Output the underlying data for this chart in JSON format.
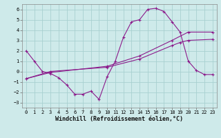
{
  "xlabel": "Windchill (Refroidissement éolien,°C)",
  "background_color": "#ceeaea",
  "grid_color": "#a8d0d0",
  "line_color": "#8b1a8b",
  "curve1_x": [
    0,
    1,
    2,
    3,
    4,
    5,
    6,
    7,
    8,
    9,
    10,
    11,
    12,
    13,
    14,
    15,
    16,
    17,
    18,
    19,
    20,
    21,
    22,
    23
  ],
  "curve1_y": [
    2.0,
    1.0,
    0.0,
    -0.2,
    -0.6,
    -1.3,
    -2.2,
    -2.2,
    -1.9,
    -2.7,
    -0.5,
    1.0,
    3.3,
    4.8,
    5.0,
    6.0,
    6.1,
    5.8,
    4.8,
    3.8,
    1.0,
    0.1,
    -0.3,
    -0.3
  ],
  "curve2_x": [
    0,
    3,
    10,
    14,
    18,
    19,
    20,
    23
  ],
  "curve2_y": [
    -0.7,
    0.0,
    0.4,
    1.2,
    2.5,
    2.8,
    3.0,
    3.1
  ],
  "curve3_x": [
    0,
    3,
    10,
    14,
    18,
    20,
    23
  ],
  "curve3_y": [
    -0.7,
    -0.1,
    0.5,
    1.5,
    3.0,
    3.8,
    3.8
  ],
  "ylim": [
    -3.5,
    6.5
  ],
  "xlim": [
    -0.5,
    23.5
  ],
  "yticks": [
    -3,
    -2,
    -1,
    0,
    1,
    2,
    3,
    4,
    5,
    6
  ],
  "xticks": [
    0,
    1,
    2,
    3,
    4,
    5,
    6,
    7,
    8,
    9,
    10,
    11,
    12,
    13,
    14,
    15,
    16,
    17,
    18,
    19,
    20,
    21,
    22,
    23
  ],
  "tick_fontsize": 5.0,
  "xlabel_fontsize": 6.0
}
